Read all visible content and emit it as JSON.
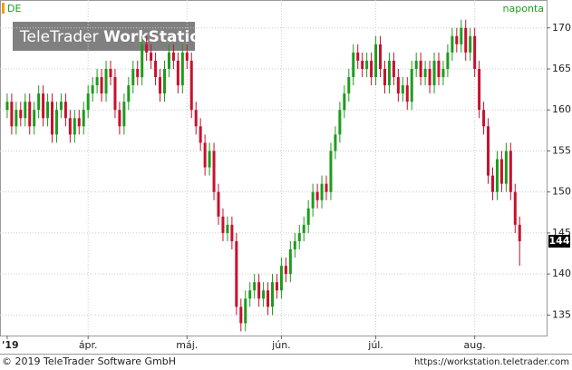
{
  "chart_data": {
    "type": "candlestick",
    "symbol": "DE",
    "period": "naponta",
    "watermark": [
      "TeleTrader",
      "WorkStation"
    ],
    "footer_left": "© 2019 TeleTrader Software GmbH",
    "footer_right": "https://workstation.teletrader.com",
    "last_price": 144,
    "up_color": "#1e9b1e",
    "down_color": "#c8102e",
    "grid": true,
    "ylim": [
      132.5,
      173.4
    ],
    "yticks": [
      135,
      140,
      145,
      150,
      155,
      160,
      165,
      170
    ],
    "xlim": [
      -1.6,
      120
    ],
    "xticks": [
      {
        "value": 0,
        "label": "'19"
      },
      {
        "value": 18,
        "label": "ápr."
      },
      {
        "value": 40,
        "label": "máj."
      },
      {
        "value": 61,
        "label": "jún."
      },
      {
        "value": 82,
        "label": "júl."
      },
      {
        "value": 104,
        "label": "aug."
      }
    ],
    "open": [
      160,
      161,
      158,
      160,
      159,
      161,
      158,
      160,
      162,
      159,
      161,
      157,
      160,
      161,
      159,
      157,
      159,
      158,
      160,
      162,
      163,
      164,
      162,
      165,
      164,
      160,
      158,
      161,
      163,
      165,
      164,
      168,
      167,
      166,
      164,
      162,
      165,
      167,
      166,
      163,
      167,
      166,
      160,
      158,
      156,
      153,
      155,
      150,
      147,
      145,
      146,
      144,
      136,
      134,
      137,
      138,
      139,
      137,
      138,
      136,
      139,
      138,
      141,
      140,
      143,
      144,
      145,
      146,
      148,
      150,
      149,
      151,
      150,
      155,
      157,
      160,
      162,
      164,
      167,
      166,
      165,
      166,
      164,
      168,
      165,
      163,
      166,
      164,
      162,
      163,
      161,
      165,
      166,
      164,
      165,
      163,
      166,
      164,
      165,
      167,
      169,
      168,
      170,
      167,
      169,
      165,
      160,
      158,
      152,
      150,
      154,
      151,
      155,
      150,
      146
    ],
    "high": [
      162,
      162,
      161,
      161,
      162,
      162,
      161,
      163,
      163,
      162,
      162,
      161,
      162,
      162,
      160,
      160,
      160,
      161,
      163,
      164,
      165,
      165,
      166,
      166,
      165,
      161,
      162,
      164,
      166,
      166,
      169,
      169,
      168,
      167,
      165,
      166,
      168,
      168,
      167,
      168,
      168,
      167,
      161,
      159,
      157,
      156,
      156,
      151,
      148,
      147,
      147,
      145,
      137,
      138,
      139,
      140,
      140,
      139,
      139,
      140,
      140,
      142,
      142,
      144,
      145,
      146,
      147,
      149,
      151,
      151,
      152,
      152,
      156,
      158,
      161,
      163,
      165,
      168,
      168,
      167,
      167,
      167,
      169,
      169,
      166,
      167,
      167,
      165,
      164,
      164,
      166,
      167,
      167,
      166,
      166,
      167,
      167,
      166,
      168,
      170,
      170,
      171,
      171,
      170,
      170,
      166,
      161,
      159,
      153,
      155,
      155,
      156,
      156,
      151,
      147
    ],
    "low": [
      159,
      157,
      157,
      158,
      158,
      157,
      157,
      159,
      158,
      158,
      156,
      156,
      159,
      158,
      156,
      156,
      157,
      157,
      159,
      161,
      162,
      161,
      161,
      163,
      159,
      157,
      157,
      160,
      162,
      163,
      163,
      166,
      165,
      163,
      161,
      161,
      164,
      165,
      162,
      162,
      165,
      159,
      157,
      155,
      152,
      152,
      149,
      146,
      144,
      144,
      143,
      135,
      133,
      133,
      136,
      137,
      136,
      136,
      135,
      135,
      137,
      137,
      139,
      139,
      142,
      143,
      144,
      145,
      147,
      148,
      148,
      149,
      149,
      154,
      156,
      159,
      161,
      163,
      165,
      164,
      164,
      163,
      163,
      164,
      162,
      162,
      163,
      161,
      161,
      160,
      160,
      164,
      163,
      163,
      162,
      162,
      163,
      163,
      164,
      166,
      167,
      167,
      166,
      166,
      164,
      159,
      157,
      151,
      149,
      149,
      150,
      150,
      149,
      145,
      141
    ],
    "close": [
      161,
      158,
      160,
      159,
      161,
      158,
      160,
      162,
      159,
      161,
      157,
      160,
      161,
      159,
      157,
      159,
      158,
      160,
      162,
      163,
      164,
      162,
      165,
      164,
      160,
      158,
      161,
      163,
      165,
      164,
      168,
      167,
      166,
      164,
      162,
      165,
      167,
      166,
      163,
      167,
      166,
      160,
      158,
      156,
      153,
      155,
      150,
      147,
      145,
      146,
      144,
      136,
      134,
      137,
      138,
      139,
      137,
      138,
      136,
      139,
      138,
      141,
      140,
      143,
      144,
      145,
      146,
      148,
      150,
      149,
      151,
      150,
      155,
      157,
      160,
      162,
      164,
      167,
      166,
      165,
      166,
      164,
      168,
      165,
      163,
      166,
      164,
      162,
      163,
      161,
      165,
      166,
      164,
      165,
      163,
      166,
      164,
      165,
      167,
      169,
      168,
      170,
      167,
      169,
      165,
      160,
      158,
      152,
      150,
      154,
      151,
      155,
      150,
      146,
      144
    ]
  }
}
